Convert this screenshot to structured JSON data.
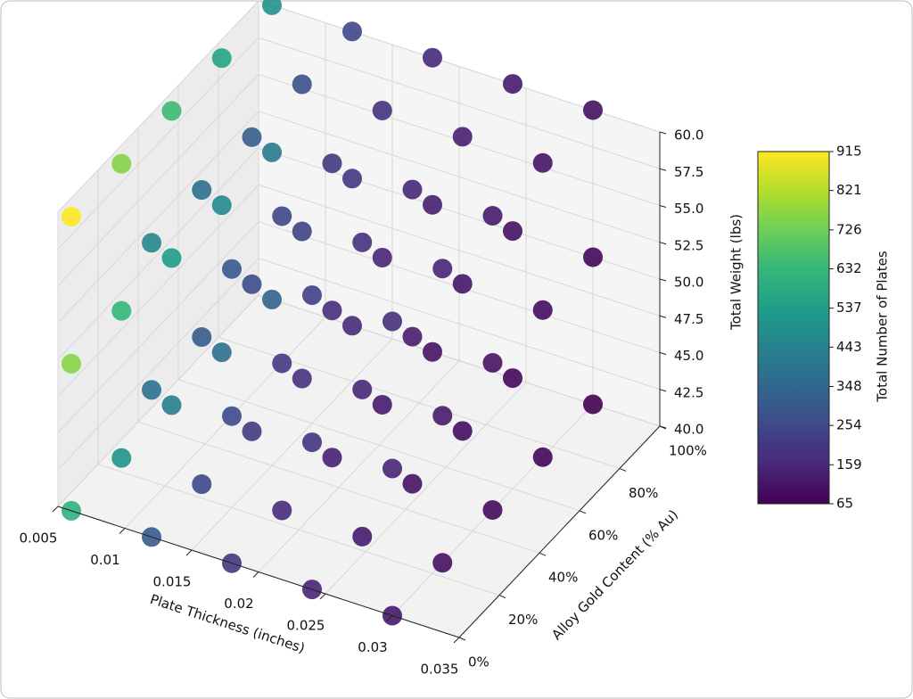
{
  "chart_data": {
    "type": "scatter3d",
    "xlabel": "Plate Thickness (inches)",
    "ylabel": "Alloy Gold Content (% Au)",
    "zlabel": "Total Weight (lbs)",
    "colorbar_label": "Total Number of Plates",
    "colormap": "viridis",
    "xlim": [
      0.005,
      0.035
    ],
    "xticks": [
      0.005,
      0.01,
      0.015,
      0.02,
      0.025,
      0.03,
      0.035
    ],
    "ylim": [
      0,
      100
    ],
    "yticks": [
      {
        "value": 0,
        "label": "0%"
      },
      {
        "value": 20,
        "label": "20%"
      },
      {
        "value": 40,
        "label": "40%"
      },
      {
        "value": 60,
        "label": "60%"
      },
      {
        "value": 80,
        "label": "80%"
      },
      {
        "value": 100,
        "label": "100%"
      }
    ],
    "zlim": [
      40,
      60
    ],
    "zticks": [
      {
        "value": 40,
        "label": "40.0"
      },
      {
        "value": 42.5,
        "label": "42.5"
      },
      {
        "value": 45,
        "label": "45.0"
      },
      {
        "value": 47.5,
        "label": "47.5"
      },
      {
        "value": 50,
        "label": "50.0"
      },
      {
        "value": 52.5,
        "label": "52.5"
      },
      {
        "value": 55,
        "label": "55.0"
      },
      {
        "value": 57.5,
        "label": "57.5"
      },
      {
        "value": 60,
        "label": "60.0"
      }
    ],
    "clim": [
      65,
      915
    ],
    "cticks": [
      65,
      159,
      254,
      348,
      443,
      537,
      632,
      726,
      821,
      915
    ],
    "points": [
      [
        0.03,
        100,
        40,
        66
      ],
      [
        0.03,
        100,
        50,
        83
      ],
      [
        0.03,
        100,
        60,
        100
      ],
      [
        0.024,
        100,
        40,
        83
      ],
      [
        0.024,
        100,
        50,
        104
      ],
      [
        0.024,
        100,
        60,
        125
      ],
      [
        0.018,
        100,
        40,
        111
      ],
      [
        0.018,
        100,
        50,
        138
      ],
      [
        0.018,
        100,
        60,
        166
      ],
      [
        0.012,
        100,
        40,
        166
      ],
      [
        0.012,
        100,
        50,
        207
      ],
      [
        0.012,
        100,
        60,
        249
      ],
      [
        0.006,
        100,
        40,
        332
      ],
      [
        0.006,
        100,
        50,
        415
      ],
      [
        0.006,
        100,
        60,
        498
      ],
      [
        0.03,
        75,
        40,
        75
      ],
      [
        0.03,
        75,
        50,
        94
      ],
      [
        0.03,
        75,
        60,
        112
      ],
      [
        0.024,
        75,
        40,
        94
      ],
      [
        0.024,
        75,
        50,
        117
      ],
      [
        0.024,
        75,
        60,
        141
      ],
      [
        0.018,
        75,
        40,
        125
      ],
      [
        0.018,
        75,
        50,
        156
      ],
      [
        0.018,
        75,
        60,
        187
      ],
      [
        0.012,
        75,
        40,
        187
      ],
      [
        0.012,
        75,
        50,
        234
      ],
      [
        0.012,
        75,
        60,
        281
      ],
      [
        0.006,
        75,
        40,
        375
      ],
      [
        0.006,
        75,
        50,
        468
      ],
      [
        0.006,
        75,
        60,
        562
      ],
      [
        0.03,
        50,
        40,
        86
      ],
      [
        0.03,
        50,
        50,
        108
      ],
      [
        0.03,
        50,
        60,
        129
      ],
      [
        0.024,
        50,
        40,
        108
      ],
      [
        0.024,
        50,
        50,
        134
      ],
      [
        0.024,
        50,
        60,
        161
      ],
      [
        0.018,
        50,
        40,
        143
      ],
      [
        0.018,
        50,
        50,
        179
      ],
      [
        0.018,
        50,
        60,
        215
      ],
      [
        0.012,
        50,
        40,
        215
      ],
      [
        0.012,
        50,
        50,
        269
      ],
      [
        0.012,
        50,
        60,
        322
      ],
      [
        0.006,
        50,
        40,
        430
      ],
      [
        0.006,
        50,
        50,
        537
      ],
      [
        0.006,
        50,
        60,
        645
      ],
      [
        0.03,
        25,
        40,
        101
      ],
      [
        0.03,
        25,
        50,
        126
      ],
      [
        0.03,
        25,
        60,
        151
      ],
      [
        0.024,
        25,
        40,
        126
      ],
      [
        0.024,
        25,
        50,
        158
      ],
      [
        0.024,
        25,
        60,
        189
      ],
      [
        0.018,
        25,
        40,
        168
      ],
      [
        0.018,
        25,
        50,
        210
      ],
      [
        0.018,
        25,
        60,
        252
      ],
      [
        0.012,
        25,
        40,
        252
      ],
      [
        0.012,
        25,
        50,
        315
      ],
      [
        0.012,
        25,
        60,
        378
      ],
      [
        0.006,
        25,
        40,
        504
      ],
      [
        0.006,
        25,
        50,
        631
      ],
      [
        0.006,
        25,
        60,
        757
      ],
      [
        0.03,
        0,
        40,
        122
      ],
      [
        0.03,
        0,
        50,
        153
      ],
      [
        0.03,
        0,
        60,
        183
      ],
      [
        0.024,
        0,
        40,
        153
      ],
      [
        0.024,
        0,
        50,
        191
      ],
      [
        0.024,
        0,
        60,
        229
      ],
      [
        0.018,
        0,
        40,
        203
      ],
      [
        0.018,
        0,
        50,
        254
      ],
      [
        0.018,
        0,
        60,
        305
      ],
      [
        0.012,
        0,
        40,
        305
      ],
      [
        0.012,
        0,
        50,
        381
      ],
      [
        0.012,
        0,
        60,
        458
      ],
      [
        0.006,
        0,
        40,
        610
      ],
      [
        0.006,
        0,
        50,
        763
      ],
      [
        0.006,
        0,
        60,
        915
      ]
    ]
  }
}
